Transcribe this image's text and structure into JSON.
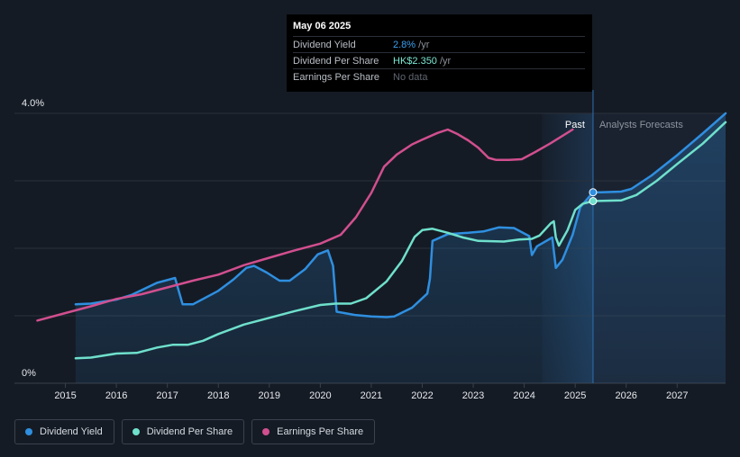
{
  "tooltip": {
    "date": "May 06 2025",
    "rows": [
      {
        "label": "Dividend Yield",
        "value": "2.8%",
        "unit": " /yr"
      },
      {
        "label": "Dividend Per Share",
        "value": "HK$2.350",
        "unit": " /yr"
      },
      {
        "label": "Earnings Per Share",
        "value": "No data",
        "unit": ""
      }
    ]
  },
  "legend": [
    {
      "label": "Dividend Yield",
      "color": "#2f8fe0"
    },
    {
      "label": "Dividend Per Share",
      "color": "#6fe0cc"
    },
    {
      "label": "Earnings Per Share",
      "color": "#d14f8f"
    }
  ],
  "chart_data": {
    "type": "line",
    "past_label": "Past",
    "forecast_label": "Analysts Forecasts",
    "y_tick_labels": [
      "4.0%",
      "0%"
    ],
    "ylim": [
      0,
      4.0
    ],
    "x_tick_labels": [
      "2015",
      "2016",
      "2017",
      "2018",
      "2019",
      "2020",
      "2021",
      "2022",
      "2023",
      "2024",
      "2025",
      "2026",
      "2027"
    ],
    "xlim": [
      2014,
      2027.95
    ],
    "forecast_start": 2025.35,
    "highlight_start": 2024.35,
    "grid": true,
    "series": [
      {
        "name": "Dividend Yield",
        "color": "#2f8fe0",
        "area": true,
        "points": [
          [
            2015.2,
            1.17
          ],
          [
            2015.5,
            1.18
          ],
          [
            2016.0,
            1.24
          ],
          [
            2016.3,
            1.31
          ],
          [
            2016.8,
            1.49
          ],
          [
            2017.15,
            1.56
          ],
          [
            2017.3,
            1.17
          ],
          [
            2017.5,
            1.17
          ],
          [
            2018.0,
            1.37
          ],
          [
            2018.3,
            1.54
          ],
          [
            2018.55,
            1.71
          ],
          [
            2018.7,
            1.74
          ],
          [
            2018.95,
            1.64
          ],
          [
            2019.2,
            1.52
          ],
          [
            2019.4,
            1.52
          ],
          [
            2019.7,
            1.69
          ],
          [
            2019.95,
            1.91
          ],
          [
            2020.15,
            1.97
          ],
          [
            2020.25,
            1.74
          ],
          [
            2020.32,
            1.06
          ],
          [
            2020.7,
            1.01
          ],
          [
            2021.0,
            0.99
          ],
          [
            2021.3,
            0.98
          ],
          [
            2021.45,
            0.99
          ],
          [
            2021.8,
            1.12
          ],
          [
            2022.1,
            1.33
          ],
          [
            2022.15,
            1.55
          ],
          [
            2022.2,
            2.11
          ],
          [
            2022.5,
            2.21
          ],
          [
            2022.9,
            2.23
          ],
          [
            2023.2,
            2.25
          ],
          [
            2023.5,
            2.31
          ],
          [
            2023.8,
            2.3
          ],
          [
            2024.1,
            2.18
          ],
          [
            2024.15,
            1.9
          ],
          [
            2024.25,
            2.03
          ],
          [
            2024.55,
            2.16
          ],
          [
            2024.62,
            1.71
          ],
          [
            2024.75,
            1.83
          ],
          [
            2024.95,
            2.2
          ],
          [
            2025.1,
            2.61
          ],
          [
            2025.35,
            2.83
          ],
          [
            2025.5,
            2.83
          ],
          [
            2025.9,
            2.84
          ],
          [
            2026.1,
            2.88
          ],
          [
            2026.5,
            3.08
          ],
          [
            2027.0,
            3.38
          ],
          [
            2027.5,
            3.7
          ],
          [
            2027.95,
            4.0
          ]
        ]
      },
      {
        "name": "Dividend Per Share",
        "color": "#6fe0cc",
        "area": false,
        "points": [
          [
            2015.2,
            0.37
          ],
          [
            2015.5,
            0.38
          ],
          [
            2016.0,
            0.44
          ],
          [
            2016.4,
            0.45
          ],
          [
            2016.8,
            0.53
          ],
          [
            2017.1,
            0.57
          ],
          [
            2017.4,
            0.57
          ],
          [
            2017.7,
            0.63
          ],
          [
            2018.0,
            0.73
          ],
          [
            2018.5,
            0.87
          ],
          [
            2019.0,
            0.97
          ],
          [
            2019.5,
            1.07
          ],
          [
            2020.0,
            1.16
          ],
          [
            2020.3,
            1.18
          ],
          [
            2020.6,
            1.18
          ],
          [
            2020.9,
            1.26
          ],
          [
            2021.3,
            1.51
          ],
          [
            2021.6,
            1.81
          ],
          [
            2021.85,
            2.17
          ],
          [
            2022.0,
            2.27
          ],
          [
            2022.2,
            2.29
          ],
          [
            2022.5,
            2.23
          ],
          [
            2022.8,
            2.16
          ],
          [
            2023.1,
            2.11
          ],
          [
            2023.6,
            2.1
          ],
          [
            2023.9,
            2.13
          ],
          [
            2024.15,
            2.14
          ],
          [
            2024.3,
            2.19
          ],
          [
            2024.52,
            2.37
          ],
          [
            2024.58,
            2.4
          ],
          [
            2024.62,
            2.16
          ],
          [
            2024.68,
            2.04
          ],
          [
            2024.85,
            2.27
          ],
          [
            2025.0,
            2.57
          ],
          [
            2025.15,
            2.66
          ],
          [
            2025.35,
            2.7
          ],
          [
            2025.9,
            2.71
          ],
          [
            2026.2,
            2.79
          ],
          [
            2026.6,
            3.0
          ],
          [
            2027.0,
            3.25
          ],
          [
            2027.5,
            3.55
          ],
          [
            2027.95,
            3.87
          ]
        ]
      },
      {
        "name": "Earnings Per Share",
        "color": "#d14f8f",
        "area": false,
        "points": [
          [
            2014.45,
            0.93
          ],
          [
            2015.0,
            1.04
          ],
          [
            2015.5,
            1.14
          ],
          [
            2016.0,
            1.25
          ],
          [
            2016.5,
            1.32
          ],
          [
            2017.0,
            1.42
          ],
          [
            2017.5,
            1.52
          ],
          [
            2018.0,
            1.61
          ],
          [
            2018.5,
            1.75
          ],
          [
            2019.0,
            1.86
          ],
          [
            2019.5,
            1.97
          ],
          [
            2020.0,
            2.07
          ],
          [
            2020.4,
            2.2
          ],
          [
            2020.7,
            2.46
          ],
          [
            2021.0,
            2.82
          ],
          [
            2021.25,
            3.21
          ],
          [
            2021.5,
            3.39
          ],
          [
            2021.8,
            3.54
          ],
          [
            2022.0,
            3.61
          ],
          [
            2022.3,
            3.71
          ],
          [
            2022.5,
            3.76
          ],
          [
            2022.7,
            3.69
          ],
          [
            2022.9,
            3.6
          ],
          [
            2023.1,
            3.49
          ],
          [
            2023.3,
            3.34
          ],
          [
            2023.45,
            3.31
          ],
          [
            2023.7,
            3.31
          ],
          [
            2023.95,
            3.32
          ],
          [
            2024.2,
            3.42
          ],
          [
            2024.5,
            3.55
          ],
          [
            2024.8,
            3.69
          ],
          [
            2024.95,
            3.76
          ]
        ]
      }
    ],
    "markers": [
      {
        "series": "Dividend Yield",
        "x": 2025.35,
        "y": 2.83
      },
      {
        "series": "Dividend Per Share",
        "x": 2025.35,
        "y": 2.7
      }
    ]
  }
}
